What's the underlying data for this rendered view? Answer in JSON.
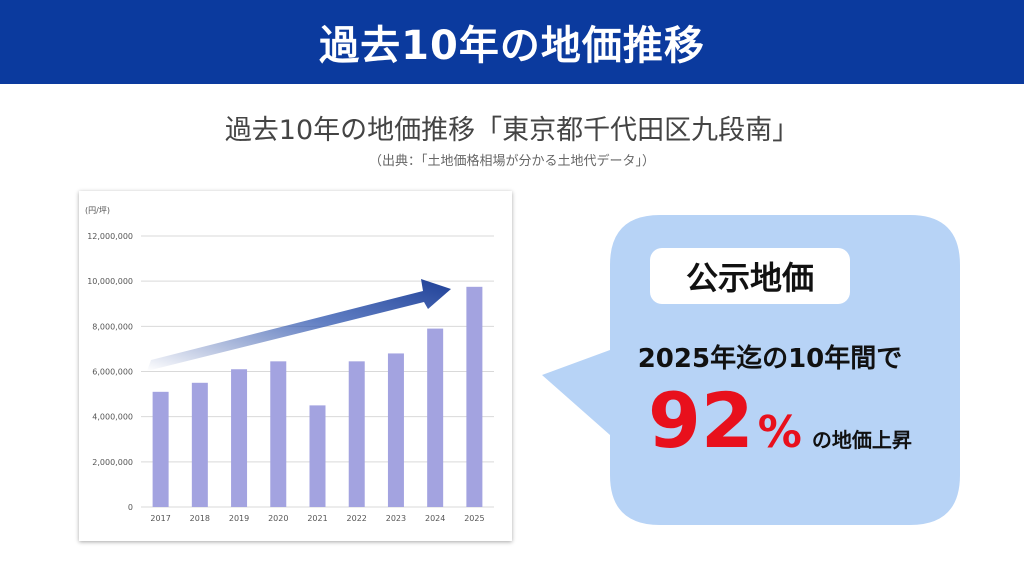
{
  "header": {
    "title": "過去10年の地価推移"
  },
  "subtitle": "過去10年の地価推移「東京都千代田区九段南」",
  "source": "（出典：「土地価格相場が分かる土地代データ」）",
  "chart_data": {
    "type": "bar",
    "unit_label": "(円/坪)",
    "categories": [
      "2017",
      "2018",
      "2019",
      "2020",
      "2021",
      "2022",
      "2023",
      "2024",
      "2025"
    ],
    "values": [
      5100000,
      5500000,
      6100000,
      6450000,
      4500000,
      6450000,
      6800000,
      7900000,
      9750000
    ],
    "ylim": [
      0,
      12000000
    ],
    "yticks": [
      0,
      2000000,
      4000000,
      6000000,
      8000000,
      10000000,
      12000000
    ],
    "ytick_labels": [
      "0",
      "2,000,000",
      "4,000,000",
      "6,000,000",
      "8,000,000",
      "10,000,000",
      "12,000,000"
    ],
    "grid": true,
    "bar_color": "#a3a3e0",
    "trend_arrow_color": "#1e3f96"
  },
  "callout": {
    "label": "公示地価",
    "text": "2025年迄の10年間で",
    "percent": "92",
    "percent_unit": "%",
    "suffix": "の地価上昇",
    "bubble_color": "#b7d3f6",
    "highlight_color": "#e8101c"
  }
}
